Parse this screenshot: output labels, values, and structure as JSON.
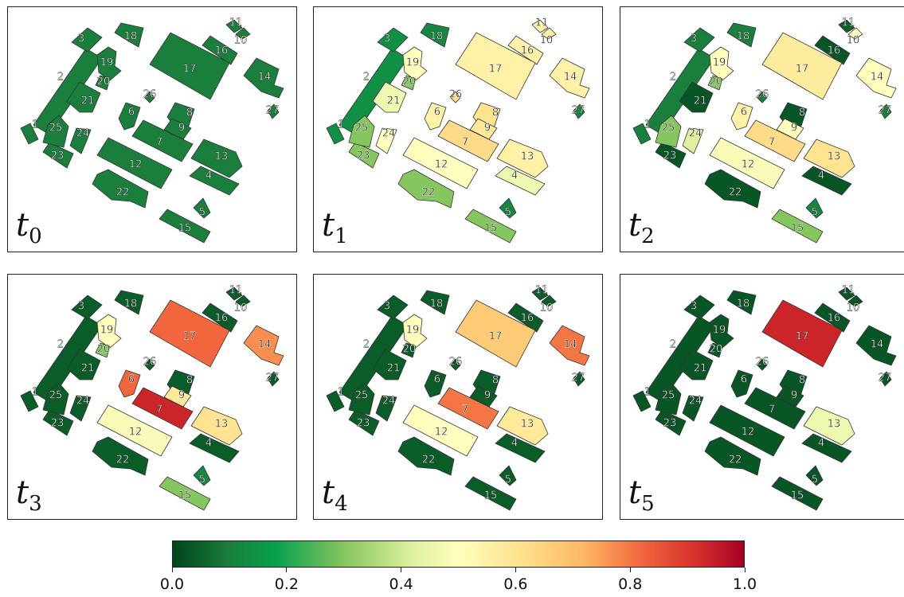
{
  "panels": [
    {
      "time_symbol": "t",
      "time_index": "0",
      "values": {
        "1": 0.1,
        "2": 0.1,
        "3": 0.1,
        "4": 0.1,
        "5": 0.1,
        "6": 0.1,
        "7": 0.1,
        "8": 0.1,
        "9": 0.1,
        "10": 0.1,
        "11": 0.1,
        "12": 0.1,
        "13": 0.1,
        "14": 0.1,
        "15": 0.1,
        "16": 0.1,
        "17": 0.1,
        "18": 0.1,
        "19": 0.1,
        "20": 0.1,
        "21": 0.1,
        "22": 0.1,
        "23": 0.1,
        "24": 0.1,
        "25": 0.1,
        "26": 0.1,
        "27": 0.1
      }
    },
    {
      "time_symbol": "t",
      "time_index": "1",
      "values": {
        "1": 0.15,
        "2": 0.15,
        "3": 0.15,
        "4": 0.45,
        "5": 0.12,
        "6": 0.55,
        "7": 0.62,
        "8": 0.6,
        "9": 0.58,
        "10": 0.55,
        "11": 0.55,
        "12": 0.5,
        "13": 0.55,
        "14": 0.55,
        "15": 0.3,
        "16": 0.55,
        "17": 0.55,
        "18": 0.12,
        "19": 0.5,
        "20": 0.3,
        "21": 0.45,
        "22": 0.3,
        "23": 0.3,
        "24": 0.5,
        "25": 0.3,
        "26": 0.62,
        "27": 0.12
      }
    },
    {
      "time_symbol": "t",
      "time_index": "2",
      "values": {
        "1": 0.1,
        "2": 0.1,
        "3": 0.1,
        "4": 0.03,
        "5": 0.12,
        "6": 0.55,
        "7": 0.62,
        "8": 0.03,
        "9": 0.5,
        "10": 0.5,
        "11": 0.05,
        "12": 0.48,
        "13": 0.6,
        "14": 0.5,
        "15": 0.3,
        "16": 0.03,
        "17": 0.57,
        "18": 0.1,
        "19": 0.5,
        "20": 0.3,
        "21": 0.03,
        "22": 0.03,
        "23": 0.03,
        "24": 0.4,
        "25": 0.3,
        "26": 0.1,
        "27": 0.1
      }
    },
    {
      "time_symbol": "t",
      "time_index": "3",
      "values": {
        "1": 0.04,
        "2": 0.04,
        "3": 0.04,
        "4": 0.04,
        "5": 0.12,
        "6": 0.8,
        "7": 0.92,
        "8": 0.04,
        "9": 0.58,
        "10": 0.04,
        "11": 0.04,
        "12": 0.48,
        "13": 0.6,
        "14": 0.75,
        "15": 0.3,
        "16": 0.04,
        "17": 0.8,
        "18": 0.04,
        "19": 0.5,
        "20": 0.3,
        "21": 0.04,
        "22": 0.04,
        "23": 0.04,
        "24": 0.04,
        "25": 0.04,
        "26": 0.04,
        "27": 0.04
      }
    },
    {
      "time_symbol": "t",
      "time_index": "4",
      "values": {
        "1": 0.04,
        "2": 0.04,
        "3": 0.04,
        "4": 0.04,
        "5": 0.04,
        "6": 0.04,
        "7": 0.78,
        "8": 0.04,
        "9": 0.04,
        "10": 0.04,
        "11": 0.04,
        "12": 0.5,
        "13": 0.58,
        "14": 0.78,
        "15": 0.04,
        "16": 0.04,
        "17": 0.66,
        "18": 0.04,
        "19": 0.5,
        "20": 0.04,
        "21": 0.04,
        "22": 0.04,
        "23": 0.04,
        "24": 0.04,
        "25": 0.04,
        "26": 0.04,
        "27": 0.04
      }
    },
    {
      "time_symbol": "t",
      "time_index": "5",
      "values": {
        "1": 0.03,
        "2": 0.03,
        "3": 0.03,
        "4": 0.03,
        "5": 0.03,
        "6": 0.03,
        "7": 0.03,
        "8": 0.03,
        "9": 0.03,
        "10": 0.03,
        "11": 0.03,
        "12": 0.03,
        "13": 0.45,
        "14": 0.03,
        "15": 0.03,
        "16": 0.03,
        "17": 0.92,
        "18": 0.03,
        "19": 0.03,
        "20": 0.03,
        "21": 0.03,
        "22": 0.03,
        "23": 0.03,
        "24": 0.03,
        "25": 0.03,
        "26": 0.03,
        "27": 0.03
      }
    }
  ],
  "building_labels": [
    "1",
    "2",
    "3",
    "4",
    "5",
    "6",
    "7",
    "8",
    "9",
    "10",
    "11",
    "12",
    "13",
    "14",
    "15",
    "16",
    "17",
    "18",
    "19",
    "20",
    "21",
    "22",
    "23",
    "24",
    "25",
    "26",
    "27"
  ],
  "colorbar": {
    "ticks": [
      "0.0",
      "0.2",
      "0.4",
      "0.6",
      "0.8",
      "1.0"
    ],
    "min": 0.0,
    "max": 1.0,
    "colormap": "RdYlGn (reversed)",
    "stops": [
      "#00441b",
      "#1a7f3c",
      "#06a14e",
      "#86c65f",
      "#dff09f",
      "#ffffbe",
      "#fee490",
      "#fdb865",
      "#f2663d",
      "#d42e2b",
      "#a50026"
    ]
  }
}
